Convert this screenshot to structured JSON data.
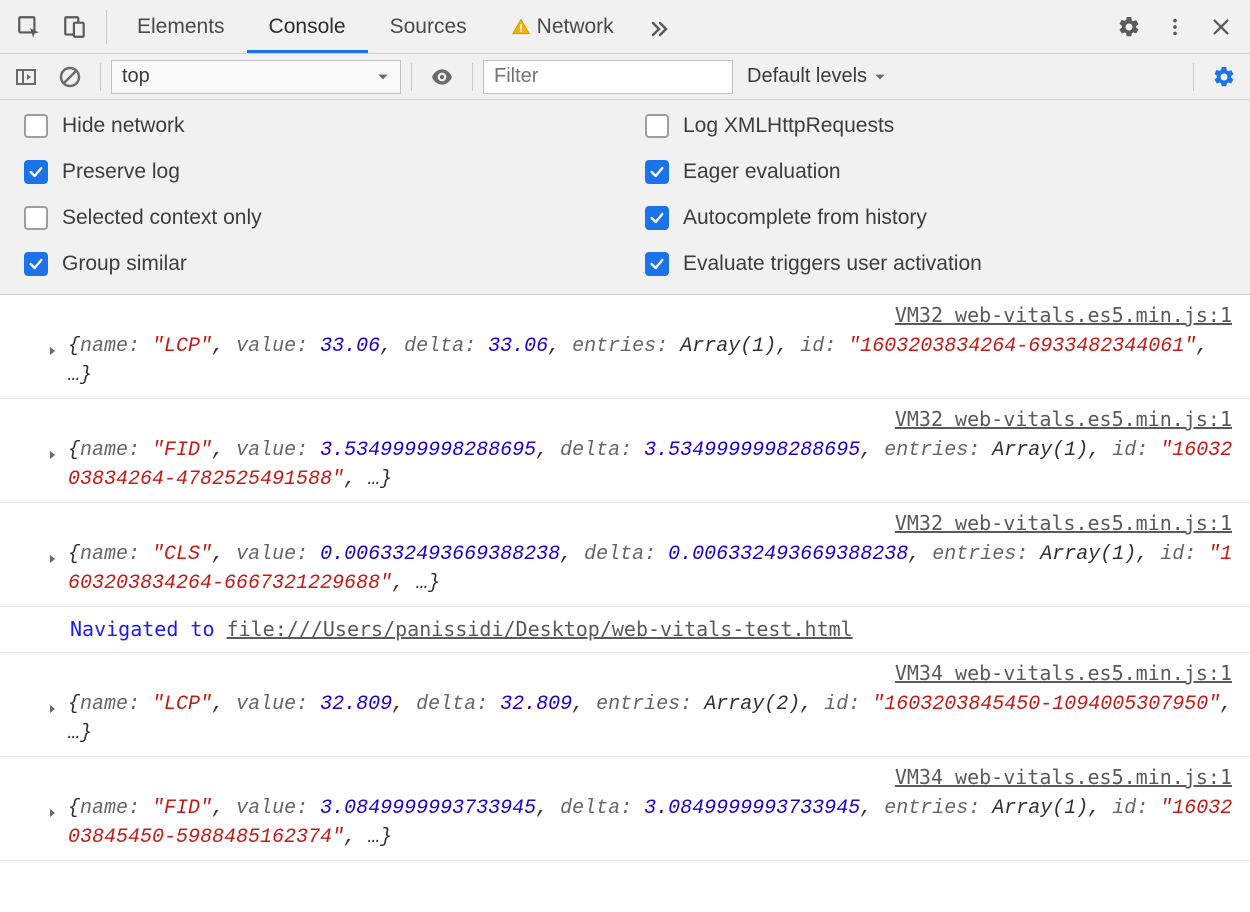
{
  "tabs": {
    "items": [
      "Elements",
      "Console",
      "Sources",
      "Network"
    ],
    "active_index": 1,
    "network_has_warning": true
  },
  "toolbar": {
    "context": "top",
    "filter_placeholder": "Filter",
    "levels_label": "Default levels"
  },
  "settings": {
    "left": [
      {
        "label": "Hide network",
        "checked": false
      },
      {
        "label": "Preserve log",
        "checked": true
      },
      {
        "label": "Selected context only",
        "checked": false
      },
      {
        "label": "Group similar",
        "checked": true
      }
    ],
    "right": [
      {
        "label": "Log XMLHttpRequests",
        "checked": false
      },
      {
        "label": "Eager evaluation",
        "checked": true
      },
      {
        "label": "Autocomplete from history",
        "checked": true
      },
      {
        "label": "Evaluate triggers user activation",
        "checked": true
      }
    ]
  },
  "colors": {
    "accent": "#1a73e8",
    "string": "#c41a16",
    "number": "#1c00cf",
    "nav": "#1a1aff"
  },
  "navigation": {
    "label": "Navigated to ",
    "url": "file:///Users/panissidi/Desktop/web-vitals-test.html"
  },
  "logs": [
    {
      "source": "VM32 web-vitals.es5.min.js:1",
      "name": "LCP",
      "value": "33.06",
      "delta": "33.06",
      "entries": "Array(1)",
      "id": "1603203834264-6933482344061"
    },
    {
      "source": "VM32 web-vitals.es5.min.js:1",
      "name": "FID",
      "value": "3.5349999998288695",
      "delta": "3.5349999998288695",
      "entries": "Array(1)",
      "id": "1603203834264-4782525491588"
    },
    {
      "source": "VM32 web-vitals.es5.min.js:1",
      "name": "CLS",
      "value": "0.006332493669388238",
      "delta": "0.006332493669388238",
      "entries": "Array(1)",
      "id": "1603203834264-6667321229688"
    },
    {
      "nav": true
    },
    {
      "source": "VM34 web-vitals.es5.min.js:1",
      "name": "LCP",
      "value": "32.809",
      "delta": "32.809",
      "entries": "Array(2)",
      "id": "1603203845450-1094005307950"
    },
    {
      "source": "VM34 web-vitals.es5.min.js:1",
      "name": "FID",
      "value": "3.0849999993733945",
      "delta": "3.0849999993733945",
      "entries": "Array(1)",
      "id": "1603203845450-5988485162374"
    }
  ]
}
